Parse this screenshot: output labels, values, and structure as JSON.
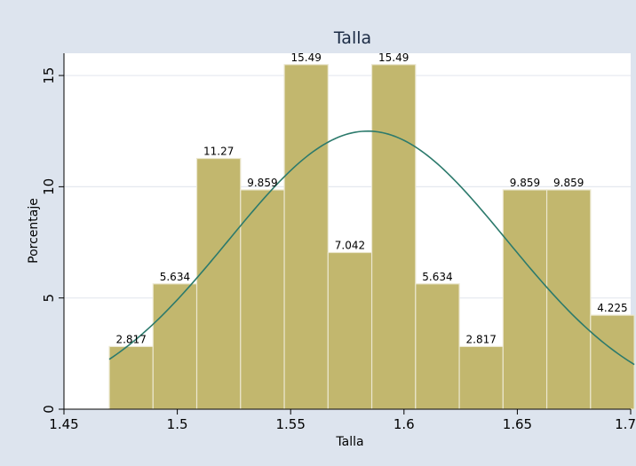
{
  "chart_data": {
    "type": "bar",
    "title": "Talla",
    "xlabel": "Talla",
    "ylabel": "Porcentaje",
    "xlim": [
      1.45,
      1.7
    ],
    "ylim": [
      0,
      16
    ],
    "x_ticks": [
      "1.45",
      "1.5",
      "1.55",
      "1.6",
      "1.65",
      "1.7"
    ],
    "y_ticks": [
      "0",
      "5",
      "10",
      "15"
    ],
    "bin_start": 1.47,
    "bin_width": 0.0193,
    "values": [
      2.817,
      5.634,
      11.27,
      9.859,
      15.49,
      7.042,
      15.49,
      5.634,
      2.817,
      9.859,
      9.859,
      4.225
    ],
    "value_labels": [
      "2.817",
      "5.634",
      "11.27",
      "9.859",
      "15.49",
      "7.042",
      "15.49",
      "5.634",
      "2.817",
      "9.859",
      "9.859",
      "4.225"
    ],
    "normal_overlay": {
      "mean": 1.584,
      "std": 0.0615,
      "peak_percent": 12.5
    },
    "grid": true,
    "colors": {
      "background": "#dde4ee",
      "plot_background": "#ffffff",
      "bar_fill": "#c2b76e",
      "bar_stroke": "#ebe7cf",
      "curve": "#2c7a6c",
      "grid": "#e4e8ef",
      "title": "#1a2a44"
    }
  }
}
